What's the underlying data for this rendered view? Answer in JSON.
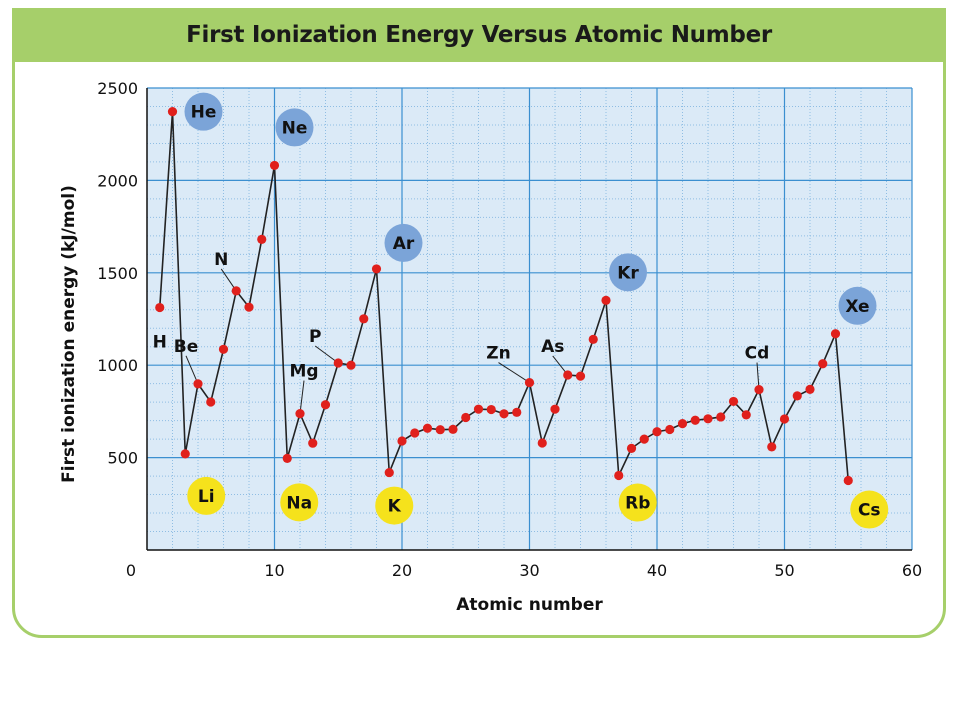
{
  "chart_data": {
    "type": "line",
    "title": "First Ionization Energy Versus Atomic Number",
    "xlabel": "Atomic number",
    "ylabel": "First ionization energy (kJ/mol)",
    "xlim": [
      0,
      60
    ],
    "ylim": [
      0,
      2500
    ],
    "x_ticks": [
      "0",
      "10",
      "20",
      "30",
      "40",
      "50",
      "60"
    ],
    "y_ticks": [
      "500",
      "1000",
      "1500",
      "2000",
      "2500"
    ],
    "grid": true,
    "series": [
      {
        "x": [
          1,
          2,
          3,
          4,
          5,
          6,
          7,
          8,
          9,
          10,
          11,
          12,
          13,
          14,
          15,
          16,
          17,
          18,
          19,
          20,
          21,
          22,
          23,
          24,
          25,
          26,
          27,
          28,
          29,
          30,
          31,
          32,
          33,
          34,
          35,
          36,
          37,
          38,
          39,
          40,
          41,
          42,
          43,
          44,
          45,
          46,
          47,
          48,
          49,
          50,
          51,
          52,
          53,
          54,
          55
        ],
        "y": [
          1312,
          2372,
          520,
          899,
          801,
          1086,
          1402,
          1314,
          1681,
          2081,
          496,
          738,
          578,
          786,
          1012,
          1000,
          1251,
          1521,
          419,
          590,
          633,
          659,
          651,
          653,
          717,
          762,
          760,
          737,
          745,
          906,
          579,
          762,
          947,
          941,
          1140,
          1351,
          403,
          550,
          600,
          640,
          652,
          684,
          702,
          710,
          720,
          804,
          731,
          868,
          558,
          709,
          834,
          869,
          1008,
          1170,
          376
        ],
        "marker_color": "#e0201c",
        "line_color": "#222222"
      }
    ],
    "element_labels": [
      {
        "text": "H",
        "x": 1,
        "y": 1312,
        "style": "plain"
      },
      {
        "text": "He",
        "x": 2,
        "y": 2372,
        "style": "blue"
      },
      {
        "text": "Li",
        "x": 3,
        "y": 520,
        "style": "yellow"
      },
      {
        "text": "Be",
        "x": 4,
        "y": 899,
        "style": "plain"
      },
      {
        "text": "N",
        "x": 7,
        "y": 1402,
        "style": "plain"
      },
      {
        "text": "Ne",
        "x": 10,
        "y": 2081,
        "style": "blue"
      },
      {
        "text": "Na",
        "x": 11,
        "y": 496,
        "style": "yellow"
      },
      {
        "text": "Mg",
        "x": 12,
        "y": 738,
        "style": "plain"
      },
      {
        "text": "P",
        "x": 15,
        "y": 1012,
        "style": "plain"
      },
      {
        "text": "Ar",
        "x": 18,
        "y": 1521,
        "style": "blue"
      },
      {
        "text": "K",
        "x": 19,
        "y": 419,
        "style": "yellow"
      },
      {
        "text": "Zn",
        "x": 30,
        "y": 906,
        "style": "plain"
      },
      {
        "text": "As",
        "x": 33,
        "y": 947,
        "style": "plain"
      },
      {
        "text": "Kr",
        "x": 36,
        "y": 1351,
        "style": "blue"
      },
      {
        "text": "Rb",
        "x": 37,
        "y": 403,
        "style": "yellow"
      },
      {
        "text": "Cd",
        "x": 48,
        "y": 868,
        "style": "plain"
      },
      {
        "text": "Xe",
        "x": 54,
        "y": 1170,
        "style": "blue"
      },
      {
        "text": "Cs",
        "x": 55,
        "y": 376,
        "style": "yellow"
      }
    ],
    "colors": {
      "frame": "#a6cf6a",
      "plot_bg": "#dbeaf7",
      "grid_major": "#3b8fd0",
      "grid_minor": "#8fbde3",
      "noble_gas": "#7ba4d8",
      "alkali_metal": "#f5e21c"
    }
  }
}
